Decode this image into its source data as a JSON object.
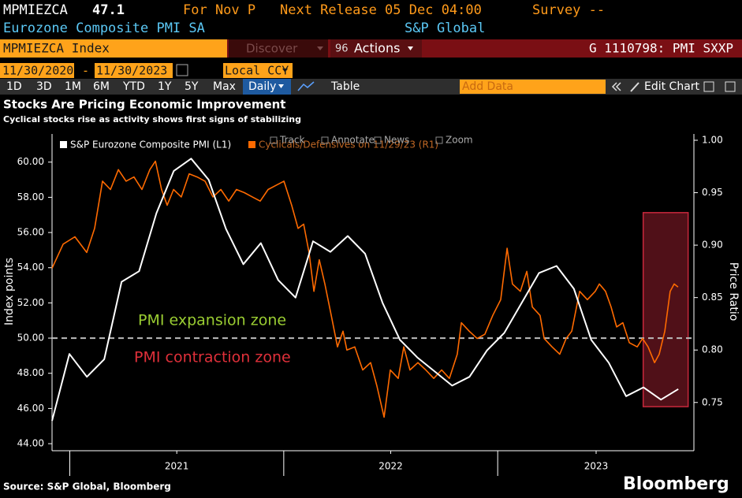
{
  "header": {
    "ticker": "MPMIEZCA",
    "value": "47.1",
    "period": "For Nov P",
    "next_release": "Next Release 05 Dec 04:00",
    "survey": "Survey --",
    "name": "Eurozone Composite PMI SA",
    "source": "S&P Global"
  },
  "toolbar": {
    "security": "MPMIEZCA Index",
    "discover": "Discover",
    "actions_key": "96",
    "actions": "Actions",
    "function": "G 1110798: PMI SXXP",
    "start_date": "11/30/2020",
    "date_sep": "-",
    "end_date": "11/30/2023",
    "currency": "Local CCY",
    "ranges": [
      "1D",
      "3D",
      "1M",
      "6M",
      "YTD",
      "1Y",
      "5Y",
      "Max"
    ],
    "frequency": "Daily",
    "table": "Table",
    "add_data": "Add Data",
    "edit_chart": "Edit Chart"
  },
  "chart_tools": [
    "Track",
    "Annotate",
    "News",
    "Zoom"
  ],
  "chart_data": {
    "type": "line",
    "title": "Stocks Are Pricing Economic Improvement",
    "subtitle": "Cyclical stocks rise as activity shows first signs of stabilizing",
    "ylabel": "Index points",
    "y2label": "Price Ratio",
    "xlim": [
      2020.917,
      2023.917
    ],
    "xticks": [
      {
        "value": 2021.5,
        "label": "2021"
      },
      {
        "value": 2022.5,
        "label": "2022"
      },
      {
        "value": 2023.46,
        "label": "2023"
      }
    ],
    "ylim": [
      43.6,
      61.6
    ],
    "yticks": [
      {
        "value": 44,
        "label": "44.00"
      },
      {
        "value": 46,
        "label": "46.00"
      },
      {
        "value": 48,
        "label": "48.00"
      },
      {
        "value": 50,
        "label": "50.00"
      },
      {
        "value": 52,
        "label": "52.00"
      },
      {
        "value": 54,
        "label": "54.00"
      },
      {
        "value": 56,
        "label": "56.00"
      },
      {
        "value": 58,
        "label": "58.00"
      },
      {
        "value": 60,
        "label": "60.00"
      }
    ],
    "y2lim": [
      0.704,
      1.006
    ],
    "y2ticks": [
      0.75,
      {
        "value": 0.8,
        "label": "0.80"
      },
      0.85,
      {
        "value": 0.9,
        "label": "0.90"
      },
      0.95,
      {
        "value": 1,
        "label": "1.00"
      }
    ],
    "series": [
      {
        "name": "S&P Eurozone Composite PMI (L1)",
        "color": "#ffffff",
        "x": [
          2020.917,
          2020.998,
          2021.08,
          2021.161,
          2021.242,
          2021.324,
          2021.405,
          2021.486,
          2021.567,
          2021.649,
          2021.73,
          2021.811,
          2021.893,
          2021.974,
          2022.055,
          2022.137,
          2022.218,
          2022.299,
          2022.38,
          2022.462,
          2022.543,
          2022.624,
          2022.706,
          2022.787,
          2022.868,
          2022.95,
          2023.031,
          2023.112,
          2023.193,
          2023.275,
          2023.356,
          2023.437,
          2023.519,
          2023.6,
          2023.681,
          2023.763,
          2023.844
        ],
        "values": [
          45.3,
          49.1,
          47.8,
          48.8,
          53.2,
          53.8,
          57.1,
          59.5,
          60.2,
          59.0,
          56.2,
          54.2,
          55.4,
          53.3,
          52.3,
          55.5,
          54.9,
          55.8,
          54.8,
          52.0,
          49.9,
          48.9,
          48.1,
          47.3,
          47.8,
          49.3,
          50.3,
          52.0,
          53.7,
          54.1,
          52.8,
          49.9,
          48.6,
          46.7,
          47.2,
          46.5,
          47.1
        ]
      },
      {
        "name": "Cyclicals/Defensives on 11/29/23 (R1)",
        "color": "#ff6a00",
        "axis": "y2",
        "x": [
          2020.917,
          2020.969,
          2021.024,
          2021.079,
          2021.116,
          2021.153,
          2021.19,
          2021.227,
          2021.263,
          2021.3,
          2021.337,
          2021.374,
          2021.4,
          2021.429,
          2021.455,
          2021.485,
          2021.521,
          2021.558,
          2021.595,
          2021.632,
          2021.669,
          2021.706,
          2021.743,
          2021.779,
          2021.816,
          2021.853,
          2021.89,
          2021.927,
          2021.964,
          2022.001,
          2022.037,
          2022.067,
          2022.093,
          2022.118,
          2022.141,
          2022.166,
          2022.192,
          2022.222,
          2022.251,
          2022.277,
          2022.295,
          2022.332,
          2022.369,
          2022.406,
          2022.435,
          2022.469,
          2022.498,
          2022.535,
          2022.561,
          2022.59,
          2022.627,
          2022.664,
          2022.701,
          2022.738,
          2022.774,
          2022.811,
          2022.83,
          2022.867,
          2022.904,
          2022.94,
          2022.977,
          2023.014,
          2023.044,
          2023.069,
          2023.106,
          2023.136,
          2023.162,
          2023.198,
          2023.217,
          2023.254,
          2023.29,
          2023.32,
          2023.346,
          2023.383,
          2023.419,
          2023.456,
          2023.475,
          2023.504,
          2023.53,
          2023.556,
          2023.585,
          2023.615,
          2023.652,
          2023.677,
          2023.703,
          2023.733,
          2023.755,
          2023.781,
          2023.806,
          2023.825,
          2023.843
        ],
        "values": [
          0.878,
          0.901,
          0.908,
          0.893,
          0.916,
          0.961,
          0.953,
          0.972,
          0.961,
          0.965,
          0.953,
          0.972,
          0.98,
          0.953,
          0.938,
          0.953,
          0.946,
          0.968,
          0.965,
          0.961,
          0.946,
          0.953,
          0.942,
          0.953,
          0.95,
          0.946,
          0.942,
          0.953,
          0.957,
          0.961,
          0.938,
          0.916,
          0.92,
          0.893,
          0.856,
          0.886,
          0.863,
          0.833,
          0.803,
          0.818,
          0.8,
          0.803,
          0.781,
          0.788,
          0.766,
          0.736,
          0.781,
          0.773,
          0.803,
          0.781,
          0.788,
          0.781,
          0.773,
          0.781,
          0.773,
          0.796,
          0.826,
          0.818,
          0.811,
          0.815,
          0.833,
          0.848,
          0.897,
          0.863,
          0.856,
          0.875,
          0.841,
          0.833,
          0.811,
          0.803,
          0.796,
          0.811,
          0.818,
          0.856,
          0.848,
          0.856,
          0.863,
          0.856,
          0.841,
          0.822,
          0.826,
          0.807,
          0.803,
          0.811,
          0.803,
          0.788,
          0.796,
          0.818,
          0.856,
          0.863,
          0.86
        ]
      }
    ],
    "hline": {
      "value": 50,
      "color": "#bbbbbb"
    },
    "annotations": [
      {
        "text": "PMI expansion zone",
        "color": "#9acd32"
      },
      {
        "text": "PMI contraction zone",
        "color": "#e0303a"
      }
    ],
    "highlight": {
      "x": [
        2023.68,
        2023.89
      ],
      "y2": [
        0.746,
        0.931
      ],
      "color": "#c8283c"
    }
  },
  "footer": {
    "source": "Source: S&P Global, Bloomberg",
    "brand": "Bloomberg"
  }
}
